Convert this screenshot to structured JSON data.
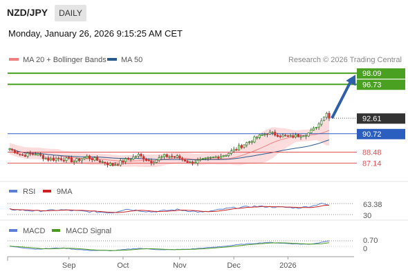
{
  "header": {
    "pair": "NZD/JPY",
    "timeframe": "DAILY",
    "datetime": "Monday, January 26, 2026 9:15:25 AM CET"
  },
  "legend": {
    "ma20_label": "MA 20 + Bollinger Bands",
    "ma50_label": "MA 50",
    "credit": "Research © 2026 Trading Central",
    "ma20_color": "#f08080",
    "ma50_color": "#2a5a8c"
  },
  "colors": {
    "target": "#4aa020",
    "pivot": "#2a5fc0",
    "support": "#e05050",
    "price": "#333333",
    "arrow": "#2f5fa8",
    "band": "#fbd3d3",
    "up": "#3a8a2a",
    "down": "#cc3333"
  },
  "chart_data": {
    "type": "candlestick",
    "price_axis": {
      "min": 86.0,
      "max": 98.6
    },
    "levels": [
      {
        "label": "98.09",
        "value": 98.09,
        "kind": "target"
      },
      {
        "label": "96.73",
        "value": 96.73,
        "kind": "target"
      },
      {
        "label": "92.61",
        "value": 92.61,
        "kind": "price"
      },
      {
        "label": "90.72",
        "value": 90.72,
        "kind": "pivot"
      },
      {
        "label": "88.48",
        "value": 88.48,
        "kind": "support"
      },
      {
        "label": "87.14",
        "value": 87.14,
        "kind": "support"
      }
    ],
    "x_ticks": [
      {
        "label": "Sep",
        "index": 23
      },
      {
        "label": "Oct",
        "index": 44
      },
      {
        "label": "Nov",
        "index": 66
      },
      {
        "label": "Dec",
        "index": 87
      },
      {
        "label": "2026",
        "index": 108
      }
    ],
    "candle_count": 125,
    "close_anchors": [
      [
        0,
        88.9
      ],
      [
        5,
        88.1
      ],
      [
        10,
        88.3
      ],
      [
        15,
        87.6
      ],
      [
        20,
        87.7
      ],
      [
        25,
        87.4
      ],
      [
        30,
        87.9
      ],
      [
        35,
        87.4
      ],
      [
        40,
        86.9
      ],
      [
        45,
        87.5
      ],
      [
        50,
        88.1
      ],
      [
        55,
        87.3
      ],
      [
        60,
        88.0
      ],
      [
        65,
        87.9
      ],
      [
        70,
        87.2
      ],
      [
        75,
        87.5
      ],
      [
        80,
        87.9
      ],
      [
        84,
        88.2
      ],
      [
        88,
        88.9
      ],
      [
        92,
        89.6
      ],
      [
        96,
        90.3
      ],
      [
        100,
        90.8
      ],
      [
        104,
        90.6
      ],
      [
        108,
        90.3
      ],
      [
        112,
        90.5
      ],
      [
        116,
        90.8
      ],
      [
        119,
        91.5
      ],
      [
        121,
        92.3
      ],
      [
        123,
        93.2
      ],
      [
        124,
        92.61
      ]
    ],
    "forecast_arrow": {
      "from_index": 124,
      "from_value": 92.61,
      "to_value": 97.9
    },
    "rsi": {
      "labels": [
        "RSI",
        "9MA"
      ],
      "value_label": "63.38",
      "lower_label": "30",
      "colors": [
        "#5b7fd4",
        "#cc2222"
      ],
      "anchors": [
        [
          0,
          49
        ],
        [
          10,
          43
        ],
        [
          20,
          47
        ],
        [
          30,
          41
        ],
        [
          40,
          37
        ],
        [
          45,
          50
        ],
        [
          55,
          40
        ],
        [
          65,
          48
        ],
        [
          75,
          38
        ],
        [
          85,
          53
        ],
        [
          95,
          60
        ],
        [
          105,
          57
        ],
        [
          112,
          54
        ],
        [
          118,
          62
        ],
        [
          121,
          72
        ],
        [
          124,
          63.38
        ]
      ]
    },
    "macd": {
      "labels": [
        "MACD",
        "MACD Signal"
      ],
      "value_label": "0.70",
      "zero_label": "0",
      "colors": [
        "#5b7fd4",
        "#4a9a20"
      ],
      "anchors": [
        [
          0,
          0.0
        ],
        [
          10,
          -0.35
        ],
        [
          20,
          -0.2
        ],
        [
          30,
          -0.5
        ],
        [
          40,
          -0.55
        ],
        [
          50,
          -0.25
        ],
        [
          60,
          -0.45
        ],
        [
          70,
          -0.35
        ],
        [
          80,
          -0.1
        ],
        [
          90,
          0.25
        ],
        [
          100,
          0.5
        ],
        [
          108,
          0.35
        ],
        [
          116,
          0.25
        ],
        [
          120,
          0.45
        ],
        [
          124,
          0.7
        ]
      ]
    }
  }
}
